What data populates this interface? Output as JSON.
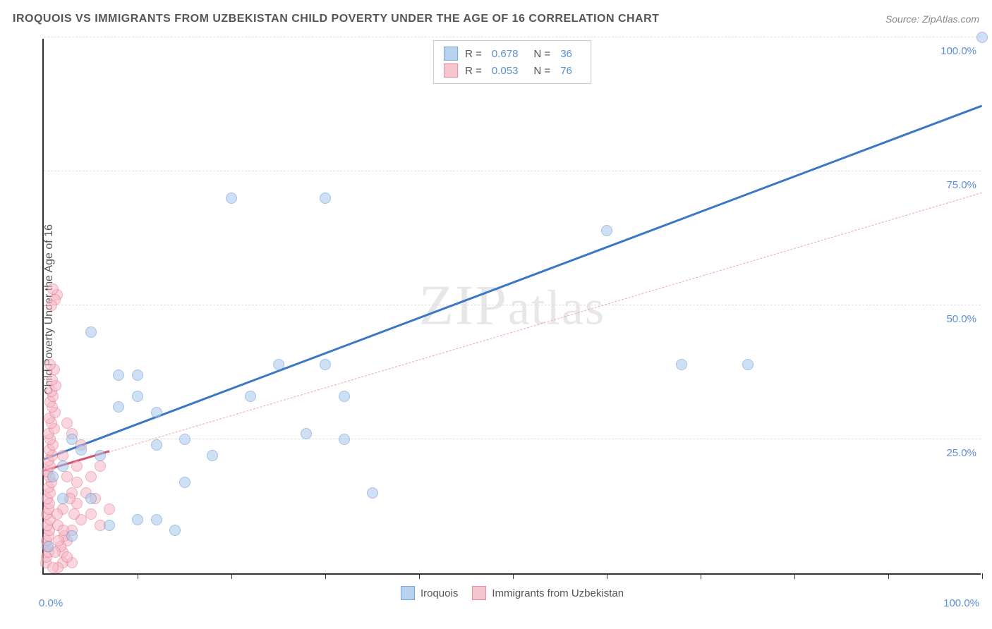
{
  "header": {
    "title": "IROQUOIS VS IMMIGRANTS FROM UZBEKISTAN CHILD POVERTY UNDER THE AGE OF 16 CORRELATION CHART",
    "source": "Source: ZipAtlas.com"
  },
  "chart": {
    "type": "scatter",
    "ylabel": "Child Poverty Under the Age of 16",
    "xlim": [
      0,
      100
    ],
    "ylim": [
      0,
      100
    ],
    "x_axis_min_label": "0.0%",
    "x_axis_max_label": "100.0%",
    "y_grid_values": [
      25,
      50,
      75,
      100
    ],
    "y_grid_labels": [
      "25.0%",
      "50.0%",
      "75.0%",
      "100.0%"
    ],
    "x_tick_values": [
      10,
      20,
      30,
      40,
      50,
      60,
      70,
      80,
      90,
      100
    ],
    "background_color": "#ffffff",
    "grid_color": "#dddddd",
    "axis_color": "#333333",
    "tick_label_color": "#5b8fd6",
    "point_radius": 8,
    "watermark": "ZIPatlas",
    "series": [
      {
        "name": "Iroquois",
        "fill_color": "#a7c7ec",
        "stroke_color": "#5b8fd6",
        "fill_opacity": 0.55,
        "R": "0.678",
        "N": "36",
        "trend": {
          "x1": 0,
          "y1": 21,
          "x2": 100,
          "y2": 87,
          "width": 3,
          "dash": "solid",
          "color": "#3a77c9"
        },
        "points": [
          [
            100,
            100
          ],
          [
            60,
            64
          ],
          [
            20,
            70
          ],
          [
            30,
            70
          ],
          [
            5,
            45
          ],
          [
            8,
            37
          ],
          [
            10,
            37
          ],
          [
            8,
            31
          ],
          [
            10,
            33
          ],
          [
            12,
            30
          ],
          [
            12,
            24
          ],
          [
            15,
            25
          ],
          [
            18,
            22
          ],
          [
            15,
            17
          ],
          [
            22,
            33
          ],
          [
            25,
            39
          ],
          [
            30,
            39
          ],
          [
            28,
            26
          ],
          [
            32,
            25
          ],
          [
            35,
            15
          ],
          [
            32,
            33
          ],
          [
            7,
            9
          ],
          [
            10,
            10
          ],
          [
            6,
            22
          ],
          [
            4,
            23
          ],
          [
            3,
            25
          ],
          [
            2,
            20
          ],
          [
            1,
            18
          ],
          [
            2,
            14
          ],
          [
            5,
            14
          ],
          [
            12,
            10
          ],
          [
            14,
            8
          ],
          [
            68,
            39
          ],
          [
            75,
            39
          ],
          [
            3,
            7
          ],
          [
            0.5,
            5
          ]
        ]
      },
      {
        "name": "Immigrants from Uzbekistan",
        "fill_color": "#f5b8c4",
        "stroke_color": "#e56f8a",
        "fill_opacity": 0.55,
        "R": "0.053",
        "N": "76",
        "trend": {
          "x1": 0,
          "y1": 19,
          "x2": 100,
          "y2": 71,
          "width": 1.5,
          "dash": "dashed",
          "color": "#eda6b6"
        },
        "trend_solid_end_x": 7,
        "trend_solid_color": "#d94f6f",
        "points": [
          [
            0.2,
            2
          ],
          [
            0.3,
            3
          ],
          [
            0.5,
            4
          ],
          [
            0.4,
            5
          ],
          [
            0.3,
            6
          ],
          [
            0.5,
            7
          ],
          [
            0.6,
            8
          ],
          [
            0.4,
            9
          ],
          [
            0.7,
            10
          ],
          [
            0.3,
            11
          ],
          [
            0.5,
            12
          ],
          [
            0.6,
            13
          ],
          [
            0.4,
            14
          ],
          [
            0.7,
            15
          ],
          [
            0.5,
            16
          ],
          [
            0.8,
            17
          ],
          [
            0.6,
            18
          ],
          [
            0.4,
            19
          ],
          [
            0.7,
            20
          ],
          [
            0.5,
            21
          ],
          [
            0.9,
            22
          ],
          [
            0.6,
            23
          ],
          [
            1.0,
            24
          ],
          [
            0.7,
            25
          ],
          [
            0.5,
            26
          ],
          [
            1.1,
            27
          ],
          [
            0.8,
            28
          ],
          [
            0.6,
            29
          ],
          [
            1.2,
            30
          ],
          [
            0.9,
            31
          ],
          [
            0.7,
            32
          ],
          [
            1.0,
            33
          ],
          [
            0.8,
            34
          ],
          [
            1.3,
            35
          ],
          [
            0.9,
            36
          ],
          [
            1.1,
            38
          ],
          [
            0.7,
            39
          ],
          [
            1.4,
            52
          ],
          [
            1.0,
            53
          ],
          [
            1.2,
            51
          ],
          [
            0.8,
            50
          ],
          [
            2,
            4
          ],
          [
            2.5,
            6
          ],
          [
            3,
            8
          ],
          [
            2,
            12
          ],
          [
            3,
            15
          ],
          [
            2.5,
            18
          ],
          [
            3.5,
            20
          ],
          [
            2,
            22
          ],
          [
            4,
            24
          ],
          [
            3,
            26
          ],
          [
            2.5,
            28
          ],
          [
            4,
            10
          ],
          [
            3.5,
            13
          ],
          [
            5,
            11
          ],
          [
            4.5,
            15
          ],
          [
            5,
            18
          ],
          [
            6,
            9
          ],
          [
            5.5,
            14
          ],
          [
            6,
            20
          ],
          [
            7,
            12
          ],
          [
            2,
            2
          ],
          [
            1.5,
            1
          ],
          [
            3,
            2
          ],
          [
            1,
            1
          ],
          [
            2.5,
            3
          ],
          [
            1.8,
            5
          ],
          [
            2.2,
            7
          ],
          [
            1.5,
            9
          ],
          [
            3.2,
            11
          ],
          [
            2.8,
            14
          ],
          [
            3.5,
            17
          ],
          [
            1.2,
            4
          ],
          [
            1.6,
            6
          ],
          [
            2.1,
            8
          ],
          [
            1.4,
            11
          ]
        ]
      }
    ],
    "legend_bottom": [
      {
        "label": "Iroquois",
        "fill": "#a7c7ec",
        "stroke": "#5b8fd6"
      },
      {
        "label": "Immigrants from Uzbekistan",
        "fill": "#f5b8c4",
        "stroke": "#e56f8a"
      }
    ]
  }
}
